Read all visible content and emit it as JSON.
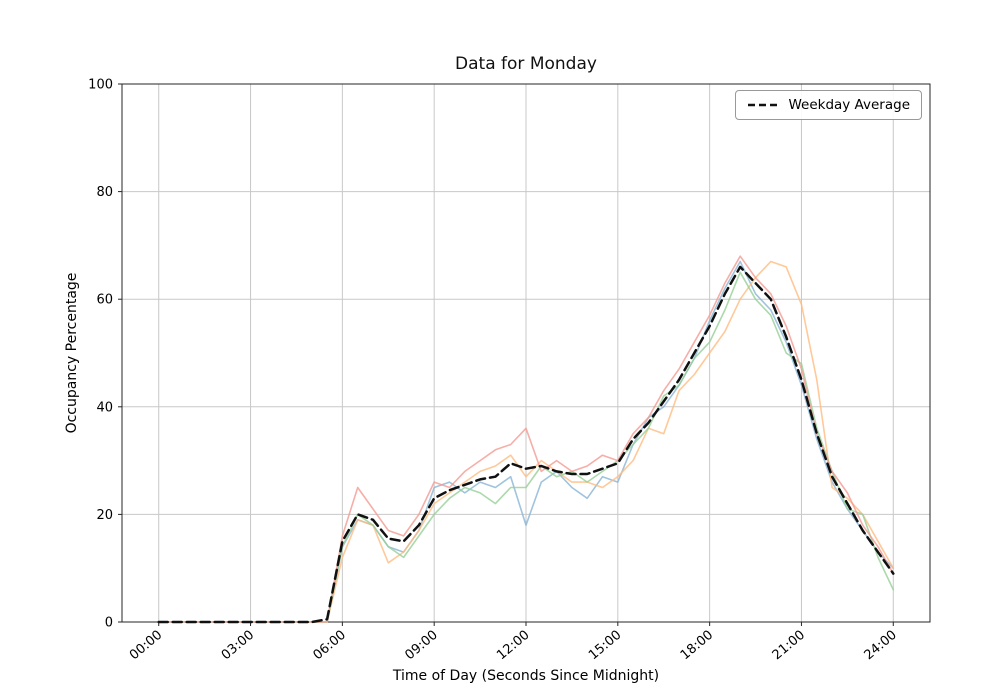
{
  "chart_data": {
    "type": "line",
    "title": "Data for Monday",
    "xlabel": "Time of Day (Seconds Since Midnight)",
    "ylabel": "Occupancy Percentage",
    "xlim": [
      -1.2,
      25.2
    ],
    "ylim": [
      0,
      100
    ],
    "grid": true,
    "legend_position": "upper right",
    "legend_label": "Weekday Average",
    "xticks": [
      0,
      3,
      6,
      9,
      12,
      15,
      18,
      21,
      24
    ],
    "xtick_labels": [
      "00:00",
      "03:00",
      "06:00",
      "09:00",
      "12:00",
      "15:00",
      "18:00",
      "21:00",
      "24:00"
    ],
    "yticks": [
      0,
      20,
      40,
      60,
      80,
      100
    ],
    "ytick_labels": [
      "0",
      "20",
      "40",
      "60",
      "80",
      "100"
    ],
    "x": [
      0,
      0.5,
      1,
      1.5,
      2,
      2.5,
      3,
      3.5,
      4,
      4.5,
      5,
      5.5,
      6,
      6.5,
      7,
      7.5,
      8,
      8.5,
      9,
      9.5,
      10,
      10.5,
      11,
      11.5,
      12,
      12.5,
      13,
      13.5,
      14,
      14.5,
      15,
      15.5,
      16,
      16.5,
      17,
      17.5,
      18,
      18.5,
      19,
      19.5,
      20,
      20.5,
      21,
      21.5,
      22,
      22.5,
      23,
      23.5,
      24
    ],
    "series": [
      {
        "name": "series-1",
        "color": "#88b4d6",
        "width": 1.6,
        "alpha": 0.8,
        "dash": false,
        "values": [
          0,
          0,
          0,
          0,
          0,
          0,
          0,
          0,
          0,
          0,
          0,
          0,
          14,
          19,
          18,
          14,
          13,
          17,
          25,
          26,
          24,
          26,
          25,
          27,
          18,
          26,
          28,
          25,
          23,
          27,
          26,
          33,
          38,
          40,
          44,
          49,
          56,
          62,
          67,
          61,
          58,
          52,
          44,
          34,
          26,
          21,
          17,
          13,
          10
        ]
      },
      {
        "name": "series-2",
        "color": "#ffbb80",
        "width": 1.6,
        "alpha": 0.8,
        "dash": false,
        "values": [
          0,
          0,
          0,
          0,
          0,
          0,
          0,
          0,
          0,
          0,
          0,
          0,
          12,
          19,
          18,
          11,
          13,
          17,
          22,
          24,
          26,
          28,
          29,
          31,
          27,
          30,
          28,
          26,
          26,
          25,
          27,
          30,
          36,
          35,
          43,
          46,
          50,
          54,
          60,
          64,
          67,
          66,
          59,
          45,
          25,
          23,
          20,
          15,
          10
        ]
      },
      {
        "name": "series-3",
        "color": "#96d096",
        "width": 1.6,
        "alpha": 0.8,
        "dash": false,
        "values": [
          0,
          0,
          0,
          0,
          0,
          0,
          0,
          0,
          0,
          0,
          0,
          0,
          14,
          20,
          18,
          14,
          12,
          16,
          20,
          23,
          25,
          24,
          22,
          25,
          25,
          29,
          27,
          28,
          26,
          28,
          30,
          33,
          36,
          42,
          44,
          49,
          52,
          58,
          65,
          60,
          57,
          50,
          48,
          36,
          28,
          21,
          20,
          12,
          6
        ]
      },
      {
        "name": "series-4",
        "color": "#f49a92",
        "width": 1.6,
        "alpha": 0.8,
        "dash": false,
        "values": [
          0,
          0,
          0,
          0,
          0,
          0,
          0,
          0,
          0,
          0,
          0,
          0,
          16,
          25,
          21,
          17,
          16,
          20,
          26,
          25,
          28,
          30,
          32,
          33,
          36,
          28,
          30,
          28,
          29,
          31,
          30,
          35,
          38,
          43,
          47,
          52,
          57,
          63,
          68,
          64,
          61,
          55,
          47,
          35,
          28,
          24,
          18,
          14,
          9
        ]
      },
      {
        "name": "Weekday Average",
        "color": "#111111",
        "width": 2.5,
        "alpha": 1,
        "dash": true,
        "values": [
          0,
          0,
          0,
          0,
          0,
          0,
          0,
          0,
          0,
          0,
          0,
          0.5,
          15,
          20,
          19,
          15.5,
          15,
          18,
          23,
          24.5,
          25.5,
          26.5,
          27,
          29.5,
          28.5,
          29,
          28,
          27.5,
          27.5,
          28.5,
          29.5,
          34,
          37,
          41,
          45,
          50,
          55,
          61,
          66,
          63,
          60,
          53,
          45,
          35,
          27,
          22,
          17,
          13,
          9
        ]
      }
    ]
  }
}
